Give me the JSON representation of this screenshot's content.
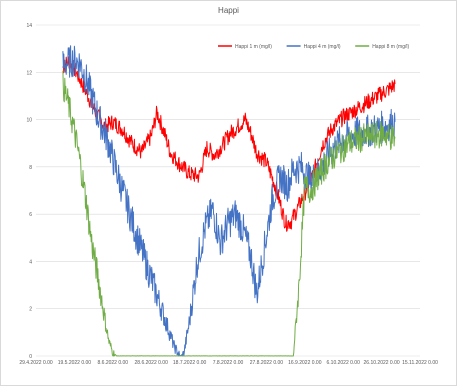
{
  "chart_data": {
    "type": "line",
    "title": "Happi",
    "xlabel": "",
    "ylabel": "",
    "ylim": [
      0,
      14
    ],
    "yticks": [
      0,
      2,
      4,
      6,
      8,
      10,
      12,
      14
    ],
    "xlim": [
      "2022-04-29",
      "2022-11-15"
    ],
    "xtick_labels": [
      "29.4.2022 0.00",
      "19.5.2022 0.00",
      "8.6.2022 0.00",
      "28.6.2022 0.00",
      "18.7.2022 0.00",
      "7.8.2022 0.00",
      "27.8.2022 0.00",
      "16.9.2022 0.00",
      "6.10.2022 0.00",
      "26.10.2022 0.00",
      "15.11.2022 0.00"
    ],
    "grid": "horizontal",
    "legend_position": "top-right",
    "series": [
      {
        "name": "Happi 1 m (mg/l)",
        "color": "#ff0000",
        "x": [
          "2022-05-13",
          "2022-05-16",
          "2022-05-20",
          "2022-05-25",
          "2022-05-30",
          "2022-06-04",
          "2022-06-08",
          "2022-06-13",
          "2022-06-18",
          "2022-06-23",
          "2022-06-28",
          "2022-07-01",
          "2022-07-05",
          "2022-07-08",
          "2022-07-13",
          "2022-07-18",
          "2022-07-23",
          "2022-07-27",
          "2022-07-31",
          "2022-08-04",
          "2022-08-08",
          "2022-08-12",
          "2022-08-16",
          "2022-08-19",
          "2022-08-22",
          "2022-08-27",
          "2022-09-01",
          "2022-09-03",
          "2022-09-06",
          "2022-09-09",
          "2022-09-12",
          "2022-09-16",
          "2022-09-20",
          "2022-09-25",
          "2022-09-30",
          "2022-10-06",
          "2022-10-12",
          "2022-10-18",
          "2022-10-24",
          "2022-10-30",
          "2022-11-02"
        ],
        "y": [
          12.2,
          12.5,
          12.0,
          11.2,
          10.3,
          9.7,
          9.9,
          9.6,
          9.0,
          8.6,
          9.3,
          10.3,
          9.4,
          8.6,
          8.1,
          7.7,
          7.6,
          8.8,
          8.5,
          8.9,
          9.4,
          9.7,
          10.0,
          9.4,
          8.6,
          8.2,
          7.1,
          6.5,
          5.6,
          5.7,
          6.2,
          6.9,
          7.6,
          8.9,
          9.6,
          10.1,
          10.4,
          10.7,
          11.0,
          11.3,
          11.5
        ]
      },
      {
        "name": "Happi 4 m (mg/l)",
        "color": "#4472c4",
        "x": [
          "2022-05-13",
          "2022-05-18",
          "2022-05-22",
          "2022-05-26",
          "2022-05-31",
          "2022-06-05",
          "2022-06-10",
          "2022-06-15",
          "2022-06-20",
          "2022-06-25",
          "2022-06-30",
          "2022-07-05",
          "2022-07-10",
          "2022-07-13",
          "2022-07-15",
          "2022-07-18",
          "2022-07-22",
          "2022-07-26",
          "2022-07-30",
          "2022-08-03",
          "2022-08-07",
          "2022-08-11",
          "2022-08-15",
          "2022-08-19",
          "2022-08-22",
          "2022-08-26",
          "2022-08-30",
          "2022-09-03",
          "2022-09-07",
          "2022-09-10",
          "2022-09-14",
          "2022-09-19",
          "2022-09-24",
          "2022-09-30",
          "2022-10-06",
          "2022-10-12",
          "2022-10-18",
          "2022-10-24",
          "2022-10-30",
          "2022-11-02"
        ],
        "y": [
          12.3,
          12.5,
          12.4,
          11.5,
          10.2,
          9.2,
          7.8,
          6.5,
          5.2,
          4.0,
          2.8,
          1.6,
          0.4,
          0.0,
          0.1,
          1.5,
          4.0,
          5.4,
          6.2,
          4.8,
          5.6,
          6.0,
          5.3,
          4.2,
          2.6,
          4.6,
          6.6,
          7.6,
          7.2,
          7.9,
          8.0,
          7.4,
          7.9,
          8.7,
          9.2,
          9.4,
          9.5,
          9.6,
          9.8,
          9.9
        ]
      },
      {
        "name": "Happi 8 m (mg/l)",
        "color": "#70ad47",
        "x": [
          "2022-05-13",
          "2022-05-16",
          "2022-05-19",
          "2022-05-22",
          "2022-05-25",
          "2022-05-28",
          "2022-06-01",
          "2022-06-04",
          "2022-06-06",
          "2022-06-08",
          "2022-06-10",
          "2022-06-14",
          "2022-06-28",
          "2022-07-18",
          "2022-08-07",
          "2022-08-27",
          "2022-09-10",
          "2022-09-13",
          "2022-09-16",
          "2022-09-19",
          "2022-09-23",
          "2022-09-28",
          "2022-10-03",
          "2022-10-09",
          "2022-10-15",
          "2022-10-21",
          "2022-10-27",
          "2022-11-02"
        ],
        "y": [
          11.5,
          10.6,
          9.5,
          8.2,
          6.6,
          4.8,
          3.0,
          1.5,
          0.6,
          0.15,
          0.0,
          0.0,
          0.0,
          0.0,
          0.0,
          0.0,
          0.0,
          3.0,
          7.2,
          7.0,
          7.6,
          8.2,
          8.6,
          9.0,
          9.2,
          9.3,
          9.4,
          9.2
        ]
      }
    ]
  }
}
